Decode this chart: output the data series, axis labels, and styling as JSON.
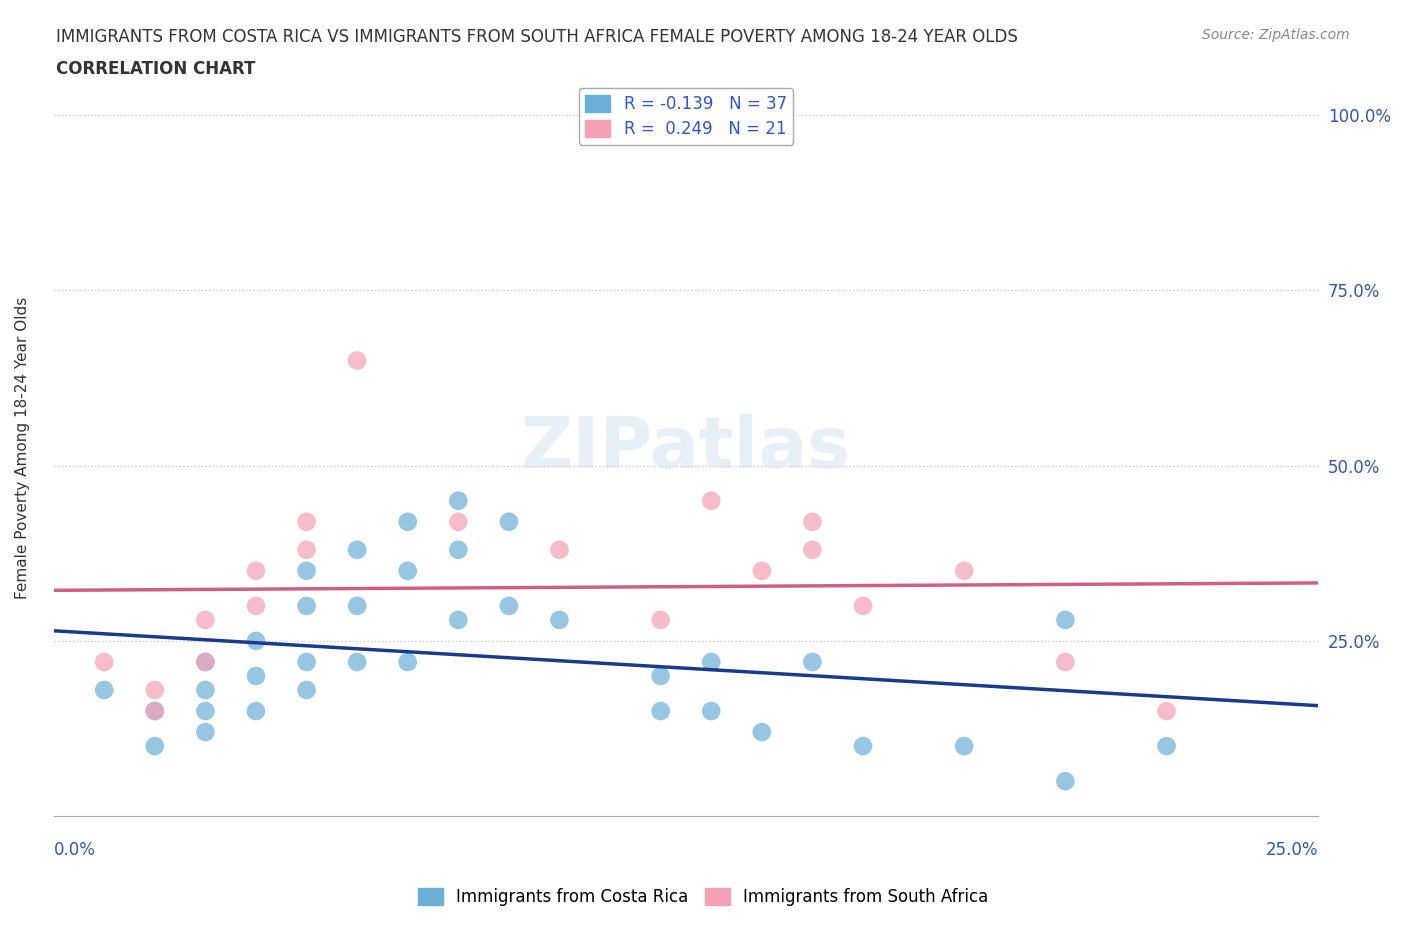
{
  "title_line1": "IMMIGRANTS FROM COSTA RICA VS IMMIGRANTS FROM SOUTH AFRICA FEMALE POVERTY AMONG 18-24 YEAR OLDS",
  "title_line2": "CORRELATION CHART",
  "source": "Source: ZipAtlas.com",
  "ylabel": "Female Poverty Among 18-24 Year Olds",
  "xlim": [
    0.0,
    0.25
  ],
  "ylim": [
    0.0,
    1.05
  ],
  "legend_entry_1": "R = -0.139   N = 37",
  "legend_entry_2": "R =  0.249   N = 21",
  "legend_label_costa": "Immigrants from Costa Rica",
  "legend_label_south": "Immigrants from South Africa",
  "costa_rica_color": "#6baed6",
  "south_africa_color": "#f4a0b5",
  "trendline_costa_color": "#1a3a8c",
  "trendline_south_color": "#d06080",
  "watermark": "ZIPatlas",
  "grid_color": "#cccccc",
  "background_color": "#ffffff",
  "label_color": "#3355aa",
  "costa_rica_x": [
    0.01,
    0.02,
    0.02,
    0.03,
    0.03,
    0.03,
    0.03,
    0.04,
    0.04,
    0.04,
    0.05,
    0.05,
    0.05,
    0.05,
    0.06,
    0.06,
    0.06,
    0.07,
    0.07,
    0.07,
    0.08,
    0.08,
    0.08,
    0.09,
    0.09,
    0.1,
    0.12,
    0.12,
    0.13,
    0.13,
    0.14,
    0.15,
    0.16,
    0.18,
    0.2,
    0.22,
    0.2
  ],
  "costa_rica_y": [
    0.18,
    0.15,
    0.1,
    0.22,
    0.18,
    0.15,
    0.12,
    0.25,
    0.2,
    0.15,
    0.35,
    0.3,
    0.22,
    0.18,
    0.38,
    0.3,
    0.22,
    0.42,
    0.35,
    0.22,
    0.45,
    0.38,
    0.28,
    0.42,
    0.3,
    0.28,
    0.2,
    0.15,
    0.22,
    0.15,
    0.12,
    0.22,
    0.1,
    0.1,
    0.28,
    0.1,
    0.05
  ],
  "south_africa_x": [
    0.01,
    0.02,
    0.02,
    0.03,
    0.03,
    0.04,
    0.04,
    0.05,
    0.05,
    0.06,
    0.08,
    0.1,
    0.12,
    0.13,
    0.14,
    0.15,
    0.15,
    0.16,
    0.18,
    0.2,
    0.22
  ],
  "south_africa_y": [
    0.22,
    0.18,
    0.15,
    0.28,
    0.22,
    0.35,
    0.3,
    0.42,
    0.38,
    0.65,
    0.42,
    0.38,
    0.28,
    0.45,
    0.35,
    0.42,
    0.38,
    0.3,
    0.35,
    0.22,
    0.15
  ]
}
